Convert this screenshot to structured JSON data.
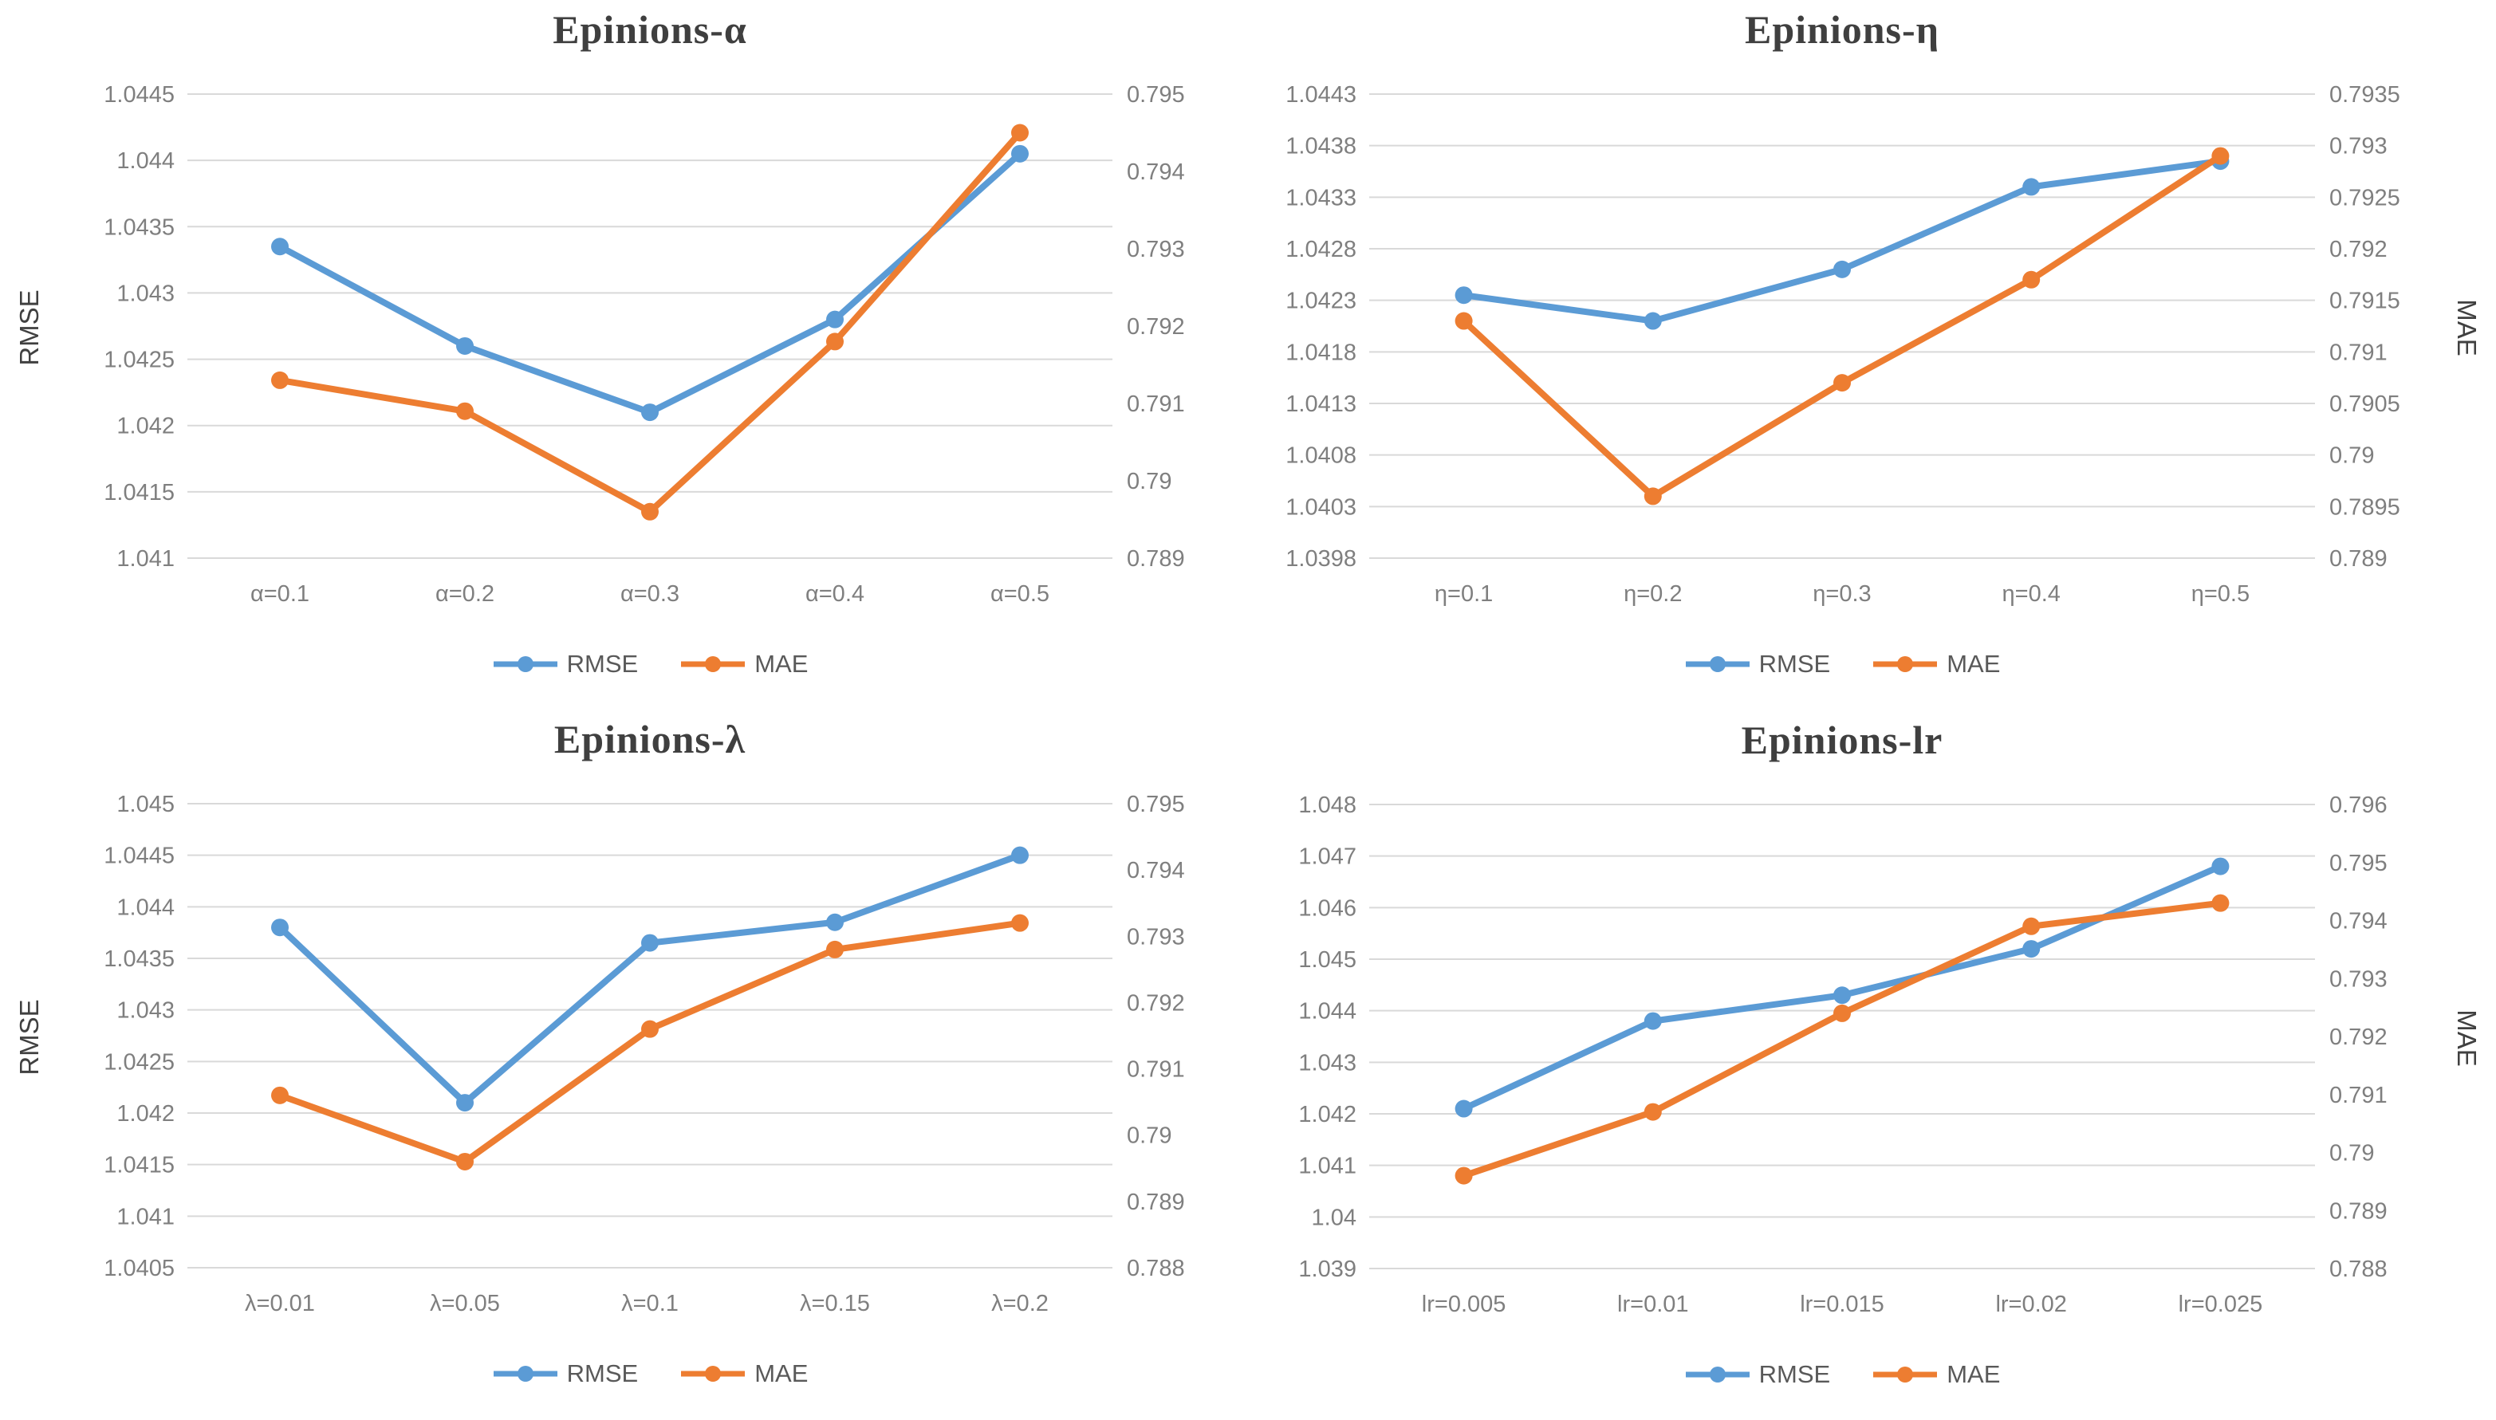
{
  "colors": {
    "rmse_series": "#5b9bd5",
    "mae_series": "#ed7d31",
    "gridline": "#d9d9d9",
    "tick_text": "#7f7f7f",
    "title_text": "#3f3f3f",
    "legend_text": "#595959",
    "axis_label_text": "#404040"
  },
  "chart_data": [
    {
      "type": "line",
      "title": "Epinions-α",
      "grid": "horizontal",
      "legend_position": "bottom",
      "legend": [
        "RMSE",
        "MAE"
      ],
      "categories": [
        "α=0.1",
        "α=0.2",
        "α=0.3",
        "α=0.4",
        "α=0.5"
      ],
      "left_axis": {
        "label": "RMSE",
        "min": 1.041,
        "max": 1.0445,
        "ticks": [
          "1.0445",
          "1.044",
          "1.0435",
          "1.043",
          "1.0425",
          "1.042",
          "1.0415",
          "1.041"
        ]
      },
      "right_axis": {
        "min": 0.789,
        "max": 0.795,
        "ticks": [
          "0.795",
          "0.794",
          "0.793",
          "0.792",
          "0.791",
          "0.79",
          "0.789"
        ]
      },
      "series": [
        {
          "name": "RMSE",
          "axis": "left",
          "color": "#5b9bd5",
          "values": [
            1.04335,
            1.0426,
            1.0421,
            1.0428,
            1.04405
          ]
        },
        {
          "name": "MAE",
          "axis": "right",
          "color": "#ed7d31",
          "values": [
            0.7913,
            0.7909,
            0.7896,
            0.7918,
            0.7945
          ]
        }
      ]
    },
    {
      "type": "line",
      "title": "Epinions-η",
      "grid": "horizontal",
      "legend_position": "bottom",
      "legend": [
        "RMSE",
        "MAE"
      ],
      "categories": [
        "η=0.1",
        "η=0.2",
        "η=0.3",
        "η=0.4",
        "η=0.5"
      ],
      "left_axis": {
        "min": 1.0398,
        "max": 1.0443,
        "ticks": [
          "1.0443",
          "1.0438",
          "1.0433",
          "1.0428",
          "1.0423",
          "1.0418",
          "1.0413",
          "1.0408",
          "1.0403",
          "1.0398"
        ]
      },
      "right_axis": {
        "label": "MAE",
        "min": 0.789,
        "max": 0.7935,
        "ticks": [
          "0.7935",
          "0.793",
          "0.7925",
          "0.792",
          "0.7915",
          "0.791",
          "0.7905",
          "0.79",
          "0.7895",
          "0.789"
        ]
      },
      "series": [
        {
          "name": "RMSE",
          "axis": "left",
          "color": "#5b9bd5",
          "values": [
            1.04235,
            1.0421,
            1.0426,
            1.0434,
            1.04365
          ]
        },
        {
          "name": "MAE",
          "axis": "right",
          "color": "#ed7d31",
          "values": [
            0.7913,
            0.7896,
            0.7907,
            0.7917,
            0.7929
          ]
        }
      ]
    },
    {
      "type": "line",
      "title": "Epinions-λ",
      "grid": "horizontal",
      "legend_position": "bottom",
      "legend": [
        "RMSE",
        "MAE"
      ],
      "categories": [
        "λ=0.01",
        "λ=0.05",
        "λ=0.1",
        "λ=0.15",
        "λ=0.2"
      ],
      "left_axis": {
        "label": "RMSE",
        "min": 1.0405,
        "max": 1.045,
        "ticks": [
          "1.045",
          "1.0445",
          "1.044",
          "1.0435",
          "1.043",
          "1.0425",
          "1.042",
          "1.0415",
          "1.041",
          "1.0405"
        ]
      },
      "right_axis": {
        "min": 0.788,
        "max": 0.795,
        "ticks": [
          "0.795",
          "0.794",
          "0.793",
          "0.792",
          "0.791",
          "0.79",
          "0.789",
          "0.788"
        ]
      },
      "series": [
        {
          "name": "RMSE",
          "axis": "left",
          "color": "#5b9bd5",
          "values": [
            1.0438,
            1.0421,
            1.04365,
            1.04385,
            1.0445
          ]
        },
        {
          "name": "MAE",
          "axis": "right",
          "color": "#ed7d31",
          "values": [
            0.7906,
            0.7896,
            0.7916,
            0.7928,
            0.7932
          ]
        }
      ]
    },
    {
      "type": "line",
      "title": "Epinions-lr",
      "grid": "horizontal",
      "legend_position": "bottom",
      "legend": [
        "RMSE",
        "MAE"
      ],
      "categories": [
        "lr=0.005",
        "lr=0.01",
        "lr=0.015",
        "lr=0.02",
        "lr=0.025"
      ],
      "left_axis": {
        "min": 1.039,
        "max": 1.048,
        "ticks": [
          "1.048",
          "1.047",
          "1.046",
          "1.045",
          "1.044",
          "1.043",
          "1.042",
          "1.041",
          "1.04",
          "1.039"
        ]
      },
      "right_axis": {
        "label": "MAE",
        "min": 0.788,
        "max": 0.796,
        "ticks": [
          "0.796",
          "0.795",
          "0.794",
          "0.793",
          "0.792",
          "0.791",
          "0.79",
          "0.789",
          "0.788"
        ]
      },
      "series": [
        {
          "name": "RMSE",
          "axis": "left",
          "color": "#5b9bd5",
          "values": [
            1.0421,
            1.0438,
            1.0443,
            1.0452,
            1.0468
          ]
        },
        {
          "name": "MAE",
          "axis": "right",
          "color": "#ed7d31",
          "values": [
            0.7896,
            0.7907,
            0.7924,
            0.7939,
            0.7943
          ]
        }
      ]
    }
  ]
}
